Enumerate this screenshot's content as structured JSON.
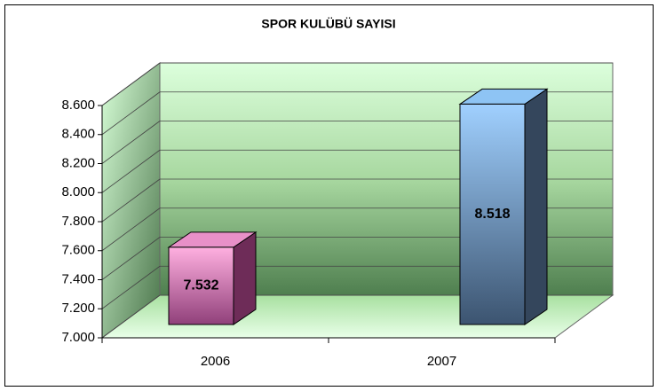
{
  "chart_data": {
    "type": "bar3d",
    "title": "SPOR KULÜBÜ SAYISI",
    "categories": [
      "2006",
      "2007"
    ],
    "series": [
      {
        "name": "SPOR KULÜBÜ SAYISI",
        "colors": [
          "#e890c8",
          "#8ec4f4"
        ],
        "values": [
          7532,
          8518
        ],
        "value_labels": [
          "7.532",
          "8.518"
        ]
      }
    ],
    "ylim": [
      7000,
      8600
    ],
    "yticks": [
      {
        "value": 7000,
        "label": "7.000"
      },
      {
        "value": 7200,
        "label": "7.200"
      },
      {
        "value": 7400,
        "label": "7.400"
      },
      {
        "value": 7600,
        "label": "7.600"
      },
      {
        "value": 7800,
        "label": "7.800"
      },
      {
        "value": 8000,
        "label": "8.000"
      },
      {
        "value": 8200,
        "label": "8.200"
      },
      {
        "value": 8400,
        "label": "8.400"
      },
      {
        "value": 8600,
        "label": "8.600"
      }
    ],
    "grid": true
  }
}
